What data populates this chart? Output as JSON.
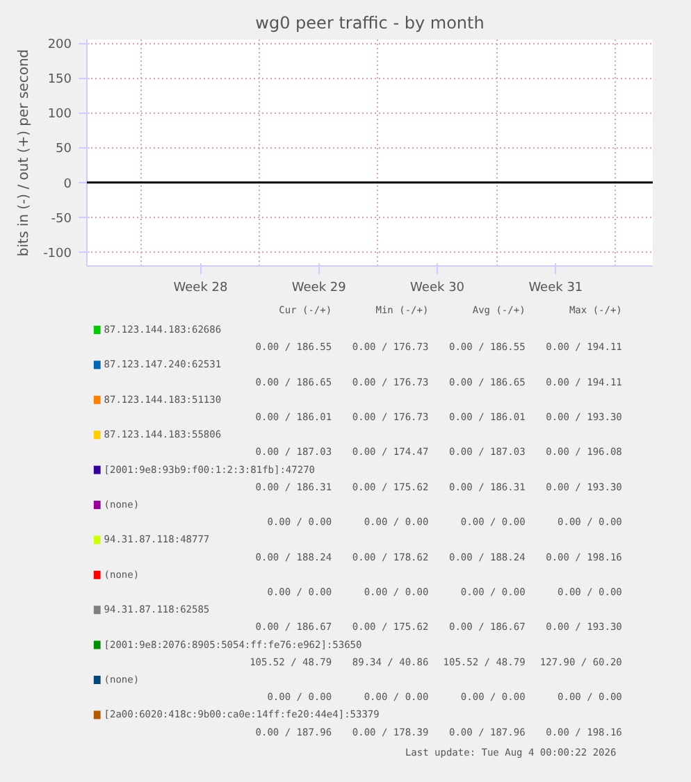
{
  "chart_data": {
    "type": "line",
    "title": "wg0 peer traffic - by month",
    "ylabel": "bits in (-) / out (+) per second",
    "categories": [
      "Week 28",
      "Week 29",
      "Week 30",
      "Week 31"
    ],
    "ylim": [
      -120,
      205
    ],
    "yticks": [
      -100,
      -50,
      0,
      50,
      100,
      150,
      200
    ],
    "grid": true,
    "legend": "bottom",
    "ref_lines": [
      {
        "axis": "y",
        "value": 0,
        "color": "#000000"
      }
    ],
    "series": [
      {
        "name": "87.123.144.183:62686",
        "color": "#00cc00",
        "values": [
          null,
          null,
          null,
          null
        ]
      },
      {
        "name": "87.123.147.240:62531",
        "color": "#0066b3",
        "values": [
          null,
          null,
          null,
          null
        ]
      },
      {
        "name": "87.123.144.183:51130",
        "color": "#ff8000",
        "values": [
          null,
          null,
          null,
          null
        ]
      },
      {
        "name": "87.123.144.183:55806",
        "color": "#ffcc00",
        "values": [
          null,
          null,
          null,
          null
        ]
      },
      {
        "name": "[2001:9e8:93b9:f00:1:2:3:81fb]:47270",
        "color": "#330099",
        "values": [
          null,
          null,
          null,
          null
        ]
      },
      {
        "name": "(none)",
        "color": "#990099",
        "values": [
          null,
          null,
          null,
          null
        ]
      },
      {
        "name": "94.31.87.118:48777",
        "color": "#ccff00",
        "values": [
          null,
          null,
          null,
          null
        ]
      },
      {
        "name": "(none)",
        "color": "#ff0000",
        "values": [
          null,
          null,
          null,
          null
        ]
      },
      {
        "name": "94.31.87.118:62585",
        "color": "#808080",
        "values": [
          null,
          null,
          null,
          null
        ]
      },
      {
        "name": "[2001:9e8:2076:8905:5054:ff:fe76:e962]:53650",
        "color": "#008f00",
        "values": [
          null,
          null,
          null,
          null
        ]
      },
      {
        "name": "(none)",
        "color": "#00487d",
        "values": [
          null,
          null,
          null,
          null
        ]
      },
      {
        "name": "[2a00:6020:418c:9b00:ca0e:14ff:fe20:44e4]:53379",
        "color": "#b35a00",
        "values": [
          null,
          null,
          null,
          null
        ]
      }
    ],
    "annotations": [
      "Cur (-/+)",
      "Min (-/+)",
      "Avg (-/+)",
      "Max (-/+)",
      "0.00 / 186.55",
      "0.00 / 176.73",
      "0.00 / 186.55",
      "0.00 / 194.11",
      "0.00 / 186.65",
      "0.00 / 176.73",
      "0.00 / 186.65",
      "0.00 / 194.11",
      "0.00 / 186.01",
      "0.00 / 176.73",
      "0.00 / 186.01",
      "0.00 / 193.30",
      "0.00 / 187.03",
      "0.00 / 174.47",
      "0.00 / 187.03",
      "0.00 / 196.08",
      "0.00 / 186.31",
      "0.00 / 175.62",
      "0.00 / 186.31",
      "0.00 / 193.30",
      "0.00 / 0.00",
      "0.00 / 0.00",
      "0.00 / 0.00",
      "0.00 / 0.00",
      "0.00 / 188.24",
      "0.00 / 178.62",
      "0.00 / 188.24",
      "0.00 / 198.16",
      "0.00 / 0.00",
      "0.00 / 0.00",
      "0.00 / 0.00",
      "0.00 / 0.00",
      "0.00 / 186.67",
      "0.00 / 175.62",
      "0.00 / 186.67",
      "0.00 / 193.30",
      "105.52 / 48.79",
      "89.34 / 40.86",
      "105.52 / 48.79",
      "127.90 / 60.20",
      "0.00 / 0.00",
      "0.00 / 0.00",
      "0.00 / 0.00",
      "0.00 / 0.00",
      "0.00 / 187.96",
      "0.00 / 178.39",
      "0.00 / 187.96",
      "0.00 / 198.16",
      "Last update: Tue Aug  4 00:00:22 2026"
    ]
  }
}
